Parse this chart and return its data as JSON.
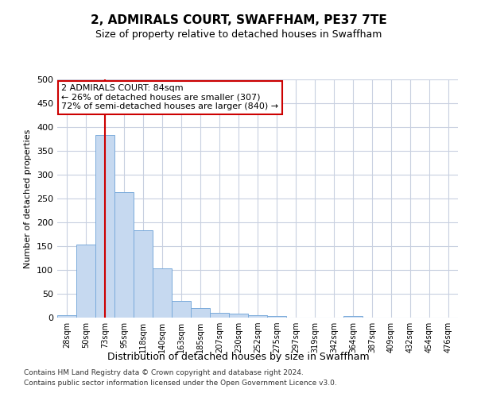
{
  "title": "2, ADMIRALS COURT, SWAFFHAM, PE37 7TE",
  "subtitle": "Size of property relative to detached houses in Swaffham",
  "xlabel": "Distribution of detached houses by size in Swaffham",
  "ylabel": "Number of detached properties",
  "bar_labels": [
    "28sqm",
    "50sqm",
    "73sqm",
    "95sqm",
    "118sqm",
    "140sqm",
    "163sqm",
    "185sqm",
    "207sqm",
    "230sqm",
    "252sqm",
    "275sqm",
    "297sqm",
    "319sqm",
    "342sqm",
    "364sqm",
    "387sqm",
    "409sqm",
    "432sqm",
    "454sqm",
    "476sqm"
  ],
  "bar_values": [
    5,
    153,
    383,
    263,
    183,
    103,
    35,
    20,
    10,
    8,
    5,
    3,
    0,
    0,
    0,
    4,
    0,
    0,
    0,
    0,
    0
  ],
  "bar_color": "#c6d9f0",
  "bar_edgecolor": "#7aabdb",
  "grid_color": "#c8d0e0",
  "annotation_text": "2 ADMIRALS COURT: 84sqm\n← 26% of detached houses are smaller (307)\n72% of semi-detached houses are larger (840) →",
  "annotation_box_color": "#ffffff",
  "annotation_box_edgecolor": "#cc0000",
  "red_line_bar_index": 2,
  "ylim": [
    0,
    500
  ],
  "yticks": [
    0,
    50,
    100,
    150,
    200,
    250,
    300,
    350,
    400,
    450,
    500
  ],
  "footer_line1": "Contains HM Land Registry data © Crown copyright and database right 2024.",
  "footer_line2": "Contains public sector information licensed under the Open Government Licence v3.0."
}
